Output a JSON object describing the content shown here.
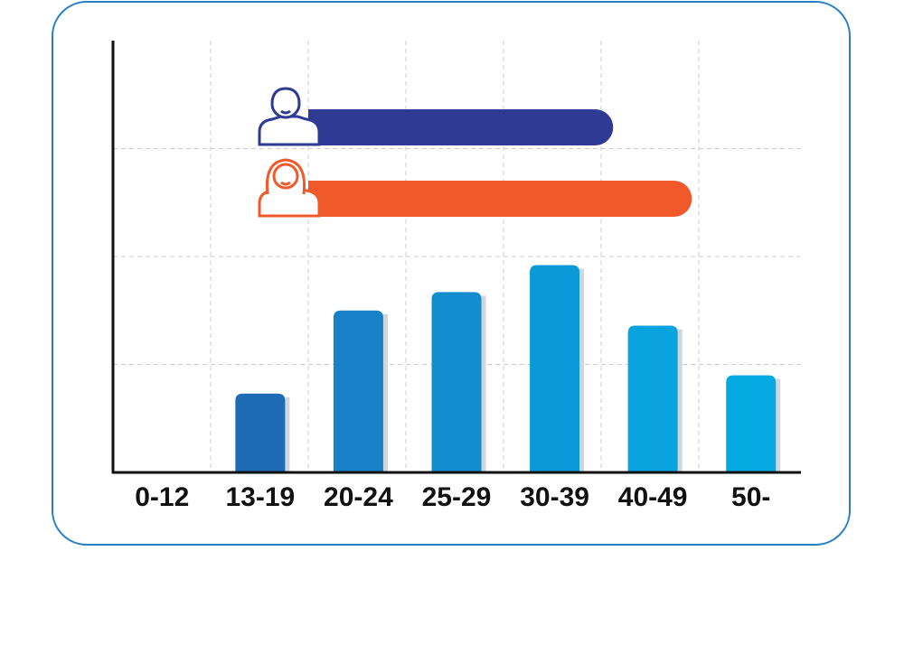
{
  "chart_data": [
    {
      "type": "bar",
      "categories": [
        "0-12",
        "13-19",
        "20-24",
        "25-29",
        "30-39",
        "40-49",
        "50-"
      ],
      "values": [
        0,
        0.73,
        1.5,
        1.67,
        1.92,
        1.36,
        0.9
      ],
      "colors": [
        "#1e6bb5",
        "#1e6bb5",
        "#1780c6",
        "#128bcf",
        "#0a9ad9",
        "#08a3de",
        "#05aae3"
      ],
      "ylim": [
        0,
        4
      ],
      "yticks": [
        1,
        2,
        3
      ],
      "grid": true
    },
    {
      "type": "hbar",
      "values": [
        3.1,
        3.9
      ],
      "colors": [
        "#2e3a93",
        "#f05a2b"
      ],
      "xlim": [
        0,
        5
      ]
    }
  ]
}
